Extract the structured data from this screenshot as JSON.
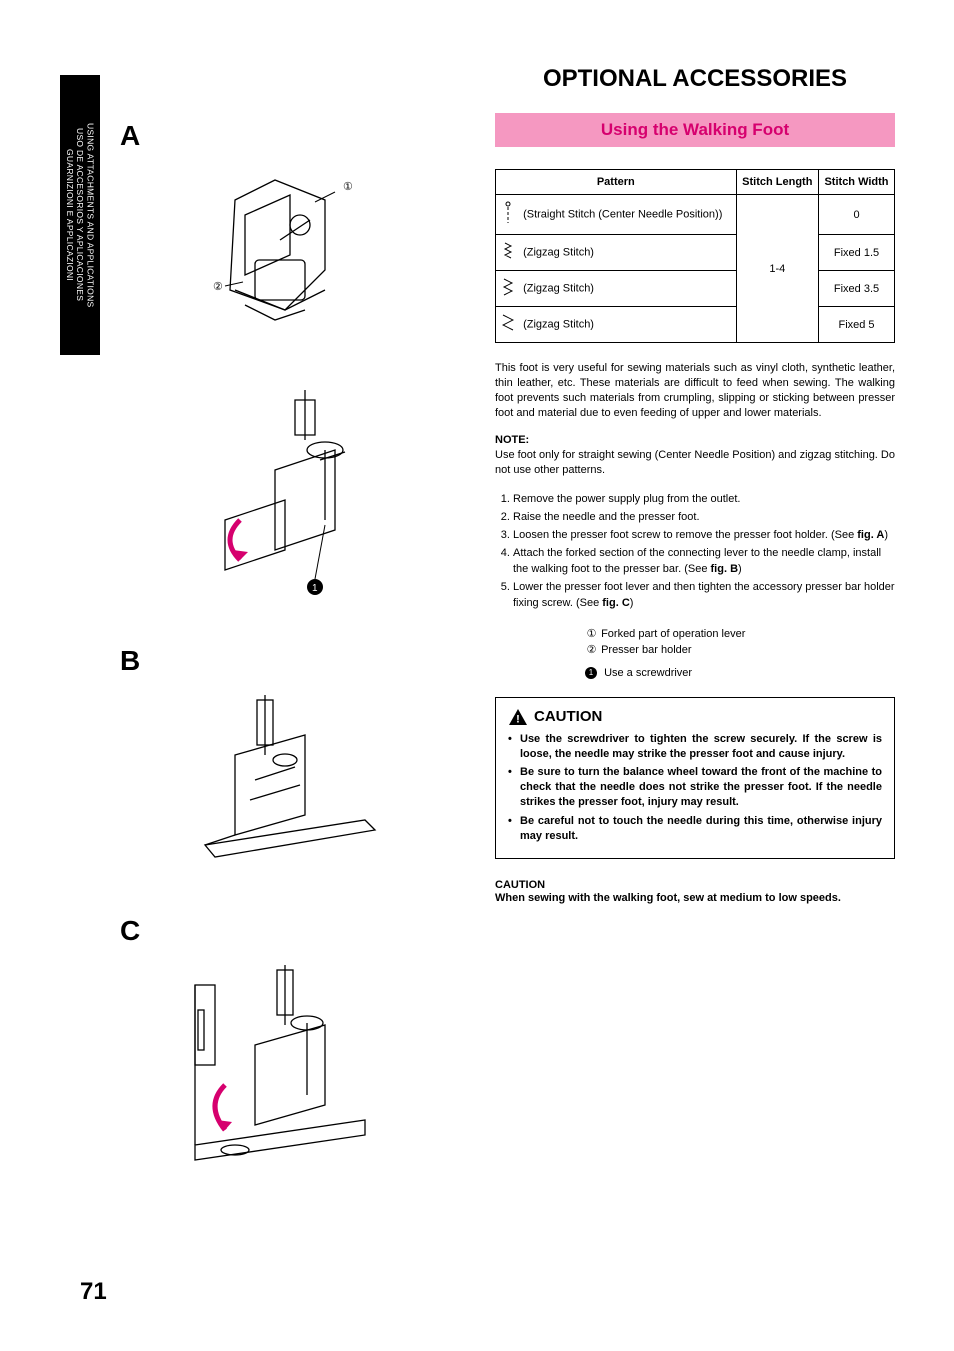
{
  "sideTab": {
    "line1": "USING ATTACHMENTS AND APPLICATIONS",
    "line2": "USO DE ACCESORIOS Y APLICACIONES",
    "line3": "GUARNIZIONI E APPLICAZIONI"
  },
  "figLabels": {
    "a": "A",
    "b": "B",
    "c": "C"
  },
  "mainTitle": "OPTIONAL ACCESSORIES",
  "subTitle": "Using the Walking Foot",
  "subTitleBar": {
    "bg": "#f598c1",
    "fg": "#d6006e"
  },
  "table": {
    "headers": [
      "Pattern",
      "Stitch Length",
      "Stitch Width"
    ],
    "rows": [
      {
        "pattern": "(Straight Stitch (Center Needle Position))",
        "width": "0"
      },
      {
        "pattern": "(Zigzag Stitch)",
        "width": "Fixed 1.5"
      },
      {
        "pattern": "(Zigzag Stitch)",
        "width": "Fixed 3.5"
      },
      {
        "pattern": "(Zigzag Stitch)",
        "width": "Fixed 5"
      }
    ],
    "lengthMerged": "1-4"
  },
  "intro": "This foot is very useful for sewing materials such as vinyl cloth, synthetic leather, thin leather, etc. These materials are difficult to feed when sewing. The walking foot prevents such materials from crumpling, slipping or sticking between presser foot and material due to even feeding of upper and lower materials.",
  "noteHdr": "NOTE:",
  "noteBody": "Use foot only for straight sewing (Center Needle Position) and zigzag stitching. Do not use other patterns.",
  "steps": [
    "Remove the power supply plug from the outlet.",
    "Raise the needle and the presser foot.",
    "Loosen the presser foot screw to remove the presser foot holder. (See <b>fig. A</b>)",
    "Attach the forked section of the connecting lever to the needle clamp, install the walking foot to the presser bar. (See <b>fig. B</b>)",
    "Lower the presser foot lever and then tighten the accessory presser bar holder fixing screw. (See <b>fig. C</b>)"
  ],
  "legend": [
    {
      "num": "①",
      "text": "Forked part of operation lever"
    },
    {
      "num": "②",
      "text": "Presser bar holder"
    }
  ],
  "bulletLegend": {
    "num": "1",
    "text": "Use a screwdriver"
  },
  "cautionTitle": "CAUTION",
  "cautionItems": [
    "Use the screwdriver to tighten the screw securely. If the screw is loose, the needle may strike the presser foot and cause injury.",
    "Be sure to turn the balance wheel toward the front of the machine to check that the needle does not strike the presser foot. If the needle strikes the presser foot, injury may result.",
    "Be careful not to touch the needle during this time, otherwise injury may result."
  ],
  "caution2Hdr": "CAUTION",
  "caution2Body": "When sewing with the walking foot, sew at medium to low speeds.",
  "pageNum": "71"
}
